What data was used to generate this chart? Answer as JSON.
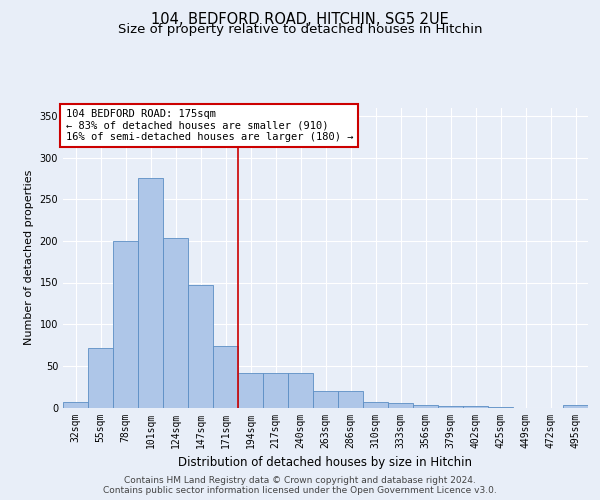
{
  "title1": "104, BEDFORD ROAD, HITCHIN, SG5 2UE",
  "title2": "Size of property relative to detached houses in Hitchin",
  "xlabel": "Distribution of detached houses by size in Hitchin",
  "ylabel": "Number of detached properties",
  "bar_labels": [
    "32sqm",
    "55sqm",
    "78sqm",
    "101sqm",
    "124sqm",
    "147sqm",
    "171sqm",
    "194sqm",
    "217sqm",
    "240sqm",
    "263sqm",
    "286sqm",
    "310sqm",
    "333sqm",
    "356sqm",
    "379sqm",
    "402sqm",
    "425sqm",
    "449sqm",
    "472sqm",
    "495sqm"
  ],
  "bar_values": [
    7,
    72,
    200,
    275,
    203,
    147,
    74,
    41,
    42,
    41,
    20,
    20,
    7,
    5,
    3,
    2,
    2,
    1,
    0,
    0,
    3
  ],
  "bar_color": "#aec6e8",
  "bar_edge_color": "#5b8ec4",
  "background_color": "#e8eef8",
  "grid_color": "#ffffff",
  "annotation_box_text": "104 BEDFORD ROAD: 175sqm\n← 83% of detached houses are smaller (910)\n16% of semi-detached houses are larger (180) →",
  "annotation_box_color": "#ffffff",
  "annotation_box_edge_color": "#cc0000",
  "vline_x_index": 6.5,
  "vline_color": "#cc0000",
  "ylim": [
    0,
    360
  ],
  "yticks": [
    0,
    50,
    100,
    150,
    200,
    250,
    300,
    350
  ],
  "footer_text": "Contains HM Land Registry data © Crown copyright and database right 2024.\nContains public sector information licensed under the Open Government Licence v3.0.",
  "title1_fontsize": 10.5,
  "title2_fontsize": 9.5,
  "xlabel_fontsize": 8.5,
  "ylabel_fontsize": 8,
  "tick_fontsize": 7,
  "annotation_fontsize": 7.5,
  "footer_fontsize": 6.5
}
